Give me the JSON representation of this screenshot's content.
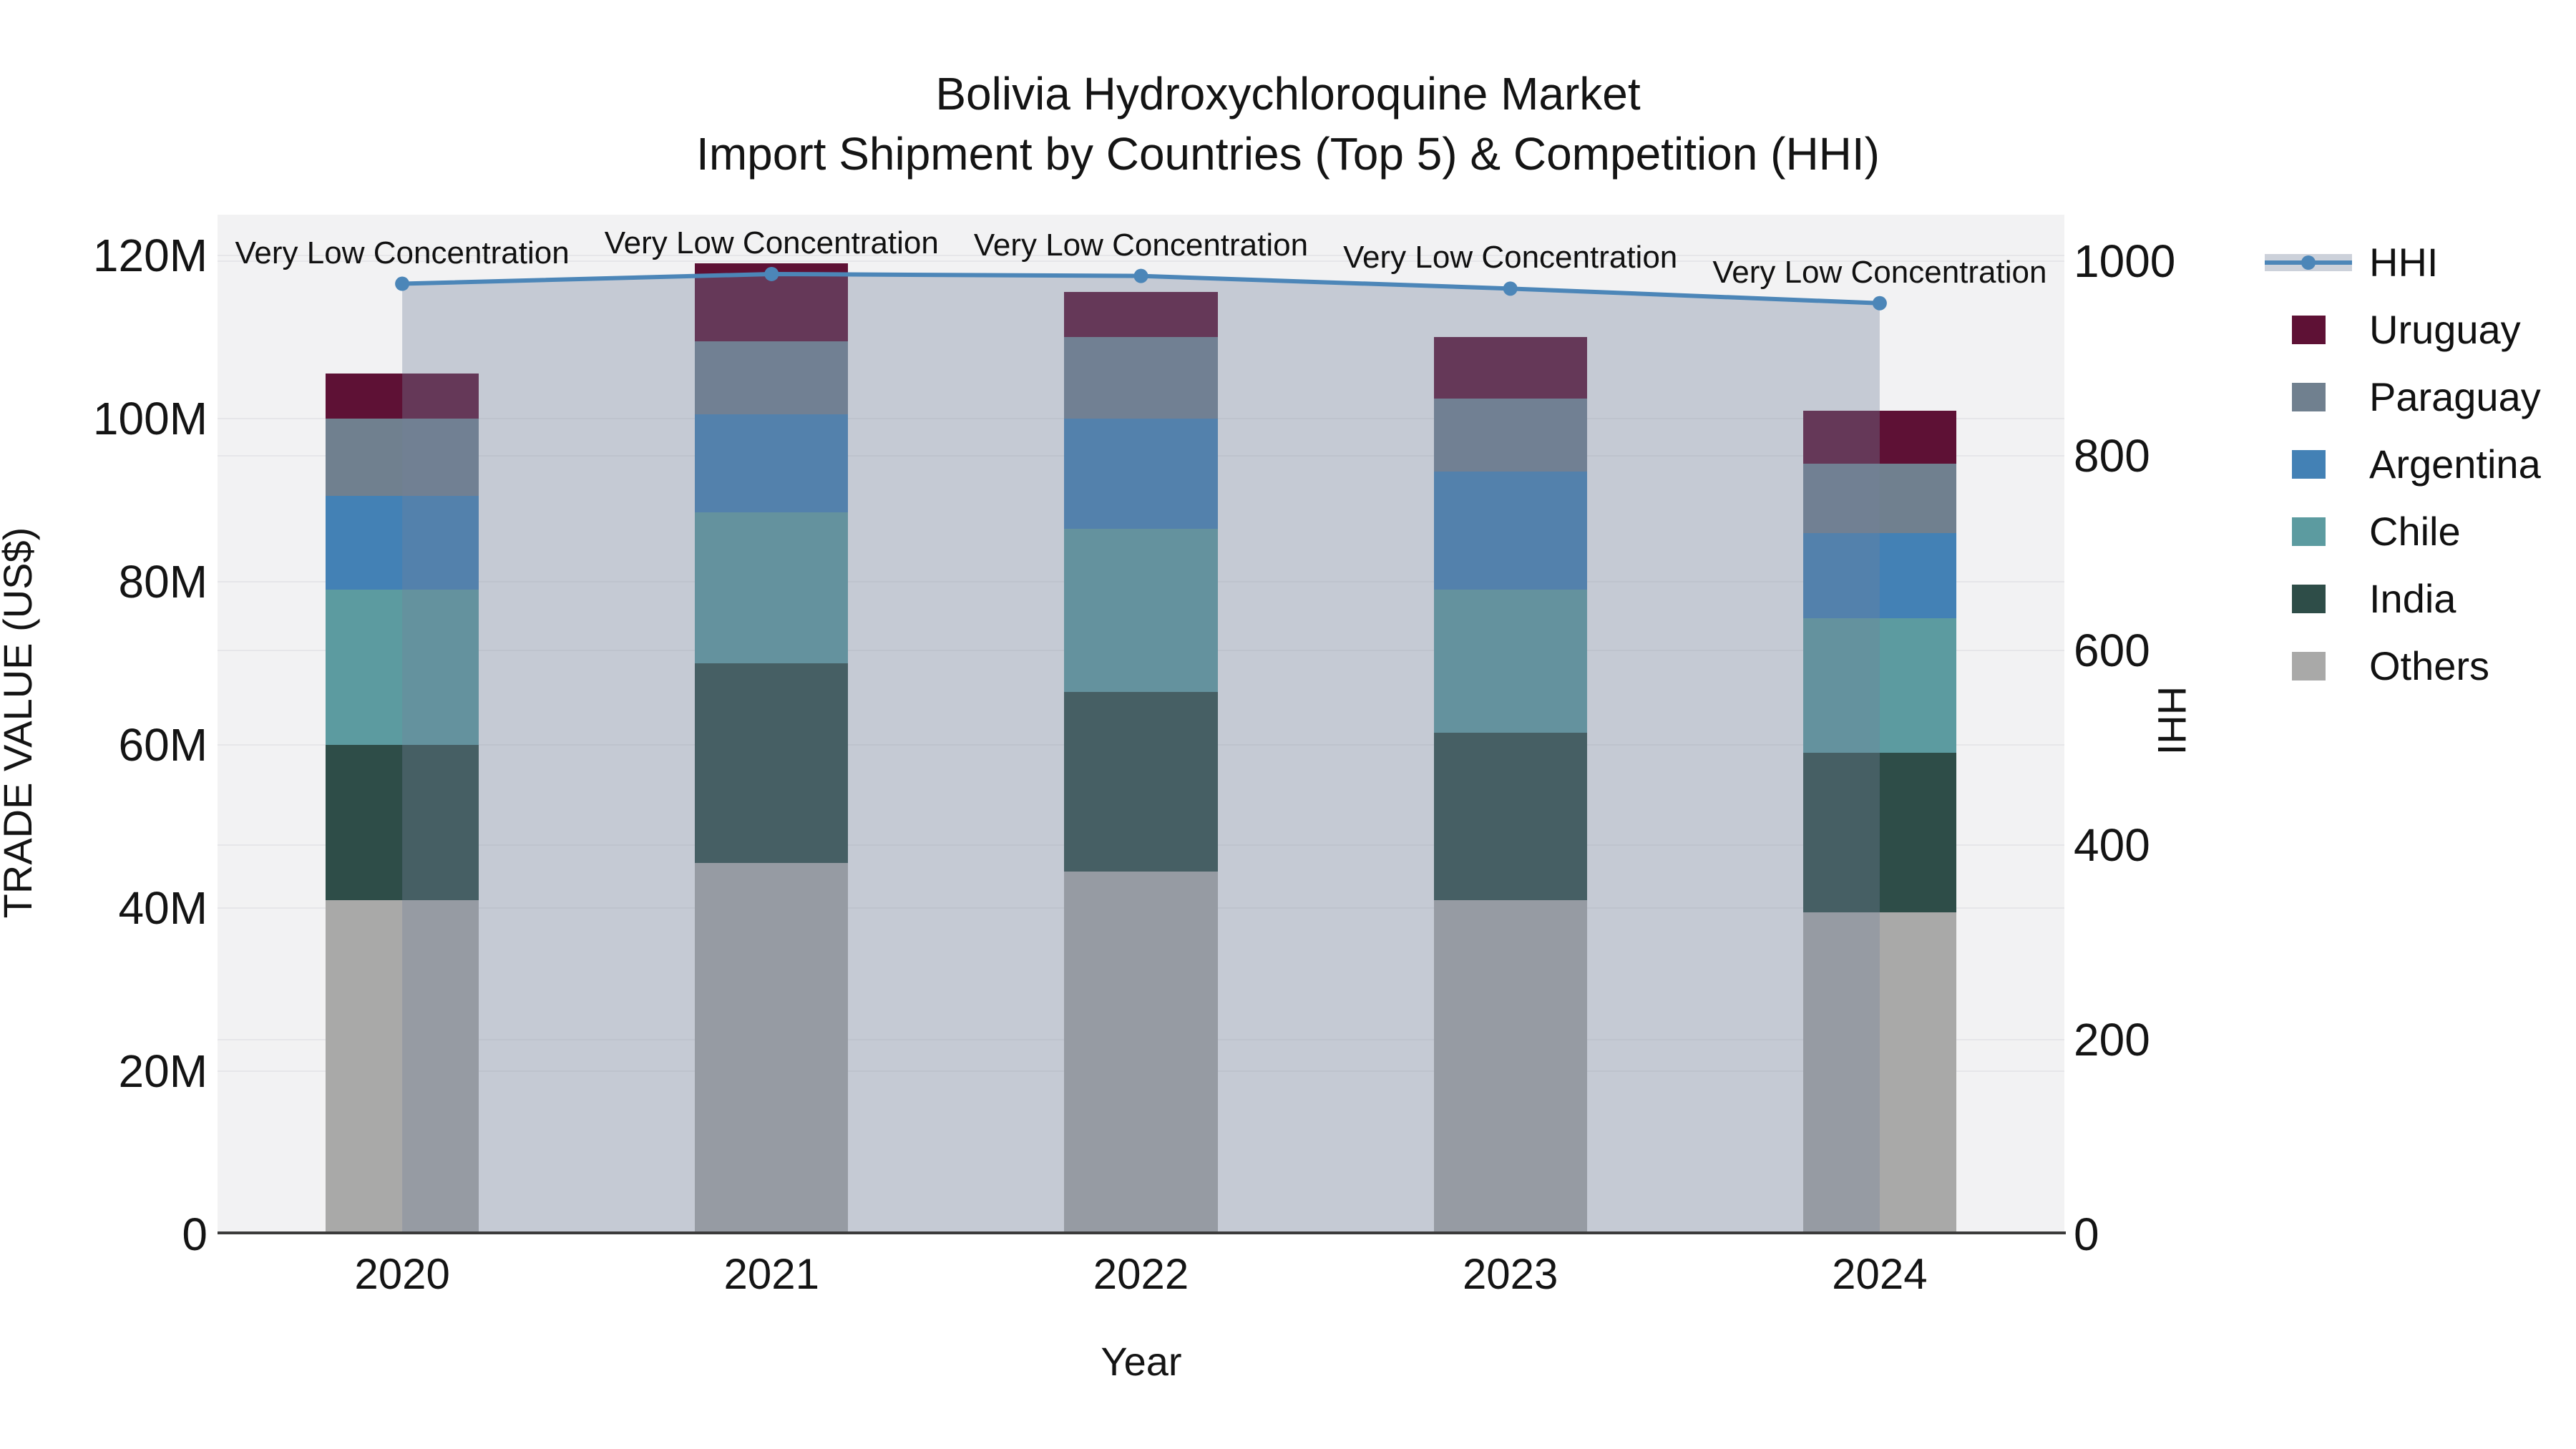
{
  "title": {
    "line1": "Bolivia Hydroxychloroquine Market",
    "line2": "Import Shipment by Countries (Top 5) & Competition (HHI)"
  },
  "axes": {
    "x": {
      "title": "Year",
      "categories": [
        "2020",
        "2021",
        "2022",
        "2023",
        "2024"
      ]
    },
    "y_left": {
      "title": "TRADE VALUE (US$)",
      "tick_labels": [
        "0",
        "20M",
        "40M",
        "60M",
        "80M",
        "100M",
        "120M"
      ],
      "tick_values": [
        0,
        20,
        40,
        60,
        80,
        100,
        120
      ],
      "range": [
        0,
        125
      ]
    },
    "y_right": {
      "title": "HHI",
      "tick_labels": [
        "0",
        "200",
        "400",
        "600",
        "800",
        "1000"
      ],
      "tick_values": [
        0,
        200,
        400,
        600,
        800,
        1000
      ],
      "range": [
        0,
        1048
      ]
    }
  },
  "legend": {
    "items": [
      {
        "label": "HHI",
        "type": "line",
        "color": "#4c86b8"
      },
      {
        "label": "Uruguay",
        "type": "swatch",
        "color": "#5e1135"
      },
      {
        "label": "Paraguay",
        "type": "swatch",
        "color": "#70808f"
      },
      {
        "label": "Argentina",
        "type": "swatch",
        "color": "#4381b5"
      },
      {
        "label": "Chile",
        "type": "swatch",
        "color": "#5c9ba0"
      },
      {
        "label": "India",
        "type": "swatch",
        "color": "#2e4d48"
      },
      {
        "label": "Others",
        "type": "swatch",
        "color": "#a9a9a8"
      }
    ]
  },
  "annotation_text": "Very Low Concentration",
  "colors": {
    "plot_background": "#f2f2f3",
    "gridline": "#e6e6e9",
    "x_axis_line": "#3b3b3b",
    "hhi_line": "#4c86b8",
    "hhi_area_fill": "rgba(116,130,155,0.35)",
    "text": "#141414"
  },
  "chart_data": {
    "type": "bar",
    "subtype": "stacked-bars-with-line-overlay",
    "title": "Bolivia Hydroxychloroquine Market — Import Shipment by Countries (Top 5) & Competition (HHI)",
    "xlabel": "Year",
    "ylabel_left": "TRADE VALUE (US$)",
    "ylabel_right": "HHI",
    "categories": [
      "2020",
      "2021",
      "2022",
      "2023",
      "2024"
    ],
    "value_unit": "millions USD",
    "stack_order_bottom_to_top": [
      "Others",
      "India",
      "Chile",
      "Argentina",
      "Paraguay",
      "Uruguay"
    ],
    "series": [
      {
        "name": "Others",
        "color": "#a9a9a8",
        "values": [
          41.0,
          45.5,
          44.5,
          41.0,
          39.5
        ]
      },
      {
        "name": "India",
        "color": "#2e4d48",
        "values": [
          19.0,
          24.5,
          22.0,
          20.5,
          19.5
        ]
      },
      {
        "name": "Chile",
        "color": "#5c9ba0",
        "values": [
          19.0,
          18.5,
          20.0,
          17.5,
          16.5
        ]
      },
      {
        "name": "Argentina",
        "color": "#4381b5",
        "values": [
          11.5,
          12.0,
          13.5,
          14.5,
          10.5
        ]
      },
      {
        "name": "Paraguay",
        "color": "#70808f",
        "values": [
          9.5,
          9.0,
          10.0,
          9.0,
          8.5
        ]
      },
      {
        "name": "Uruguay",
        "color": "#5e1135",
        "values": [
          5.5,
          9.5,
          5.5,
          7.5,
          6.5
        ]
      }
    ],
    "bar_totals": [
      105.5,
      119.0,
      115.5,
      110.0,
      101.0
    ],
    "line_series": {
      "name": "HHI",
      "axis": "right",
      "color": "#4c86b8",
      "area_fill": "rgba(116,130,155,0.35)",
      "values": [
        977,
        987,
        985,
        972,
        957
      ]
    },
    "annotations": [
      {
        "text": "Very Low Concentration",
        "category": "2020",
        "hhi": 977
      },
      {
        "text": "Very Low Concentration",
        "category": "2021",
        "hhi": 987
      },
      {
        "text": "Very Low Concentration",
        "category": "2022",
        "hhi": 985
      },
      {
        "text": "Very Low Concentration",
        "category": "2023",
        "hhi": 972
      },
      {
        "text": "Very Low Concentration",
        "category": "2024",
        "hhi": 957
      }
    ],
    "ylim_left": [
      0,
      125
    ],
    "ylim_right": [
      0,
      1048
    ],
    "grid": true,
    "legend_position": "right"
  }
}
